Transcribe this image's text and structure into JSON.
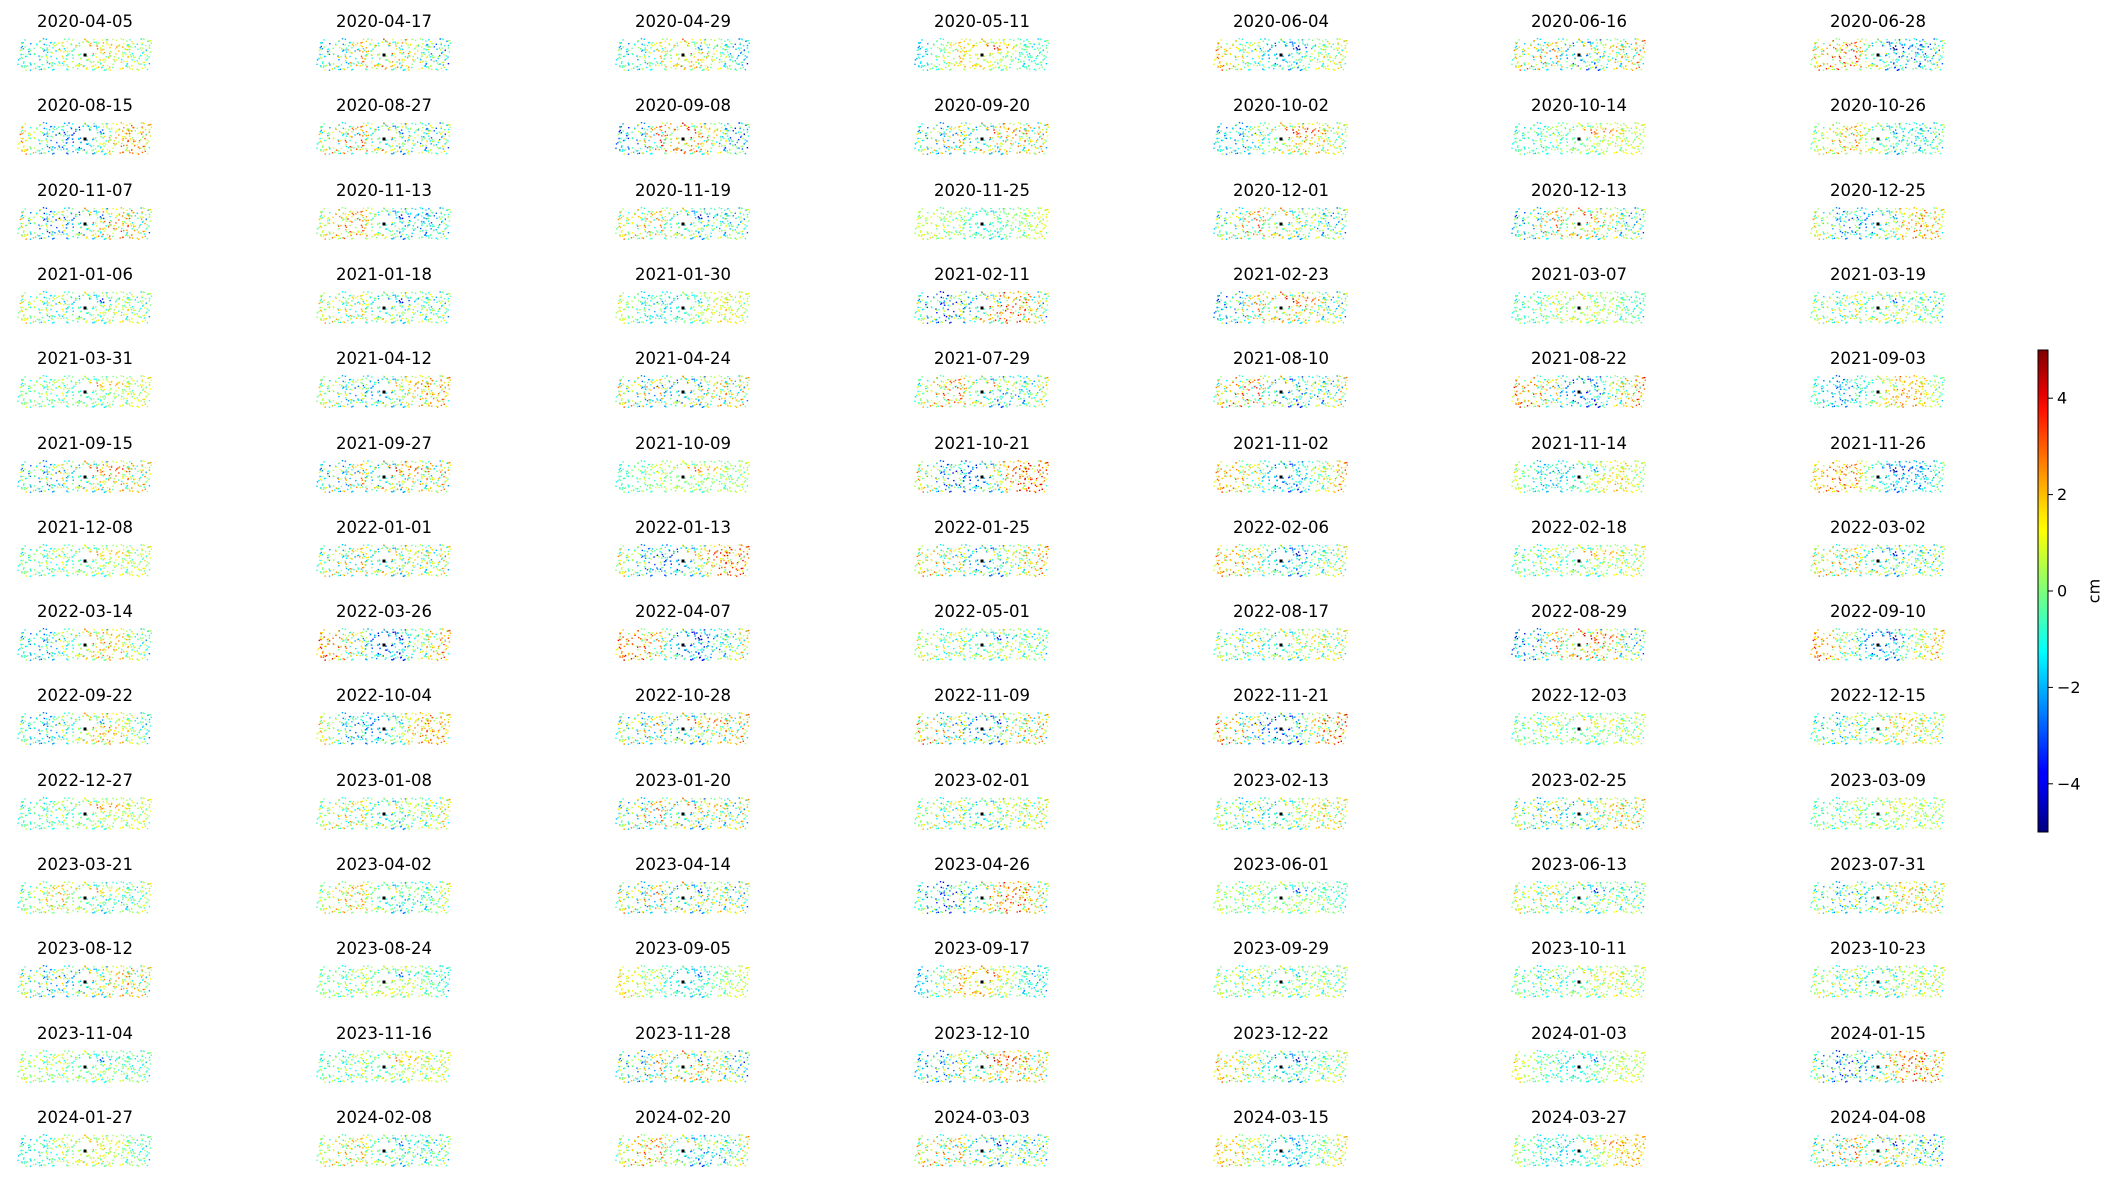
{
  "chart_data": {
    "type": "scatter",
    "layout": {
      "rows": 14,
      "cols": 7
    },
    "panels": [
      "2020-04-05",
      "2020-04-17",
      "2020-04-29",
      "2020-05-11",
      "2020-06-04",
      "2020-06-16",
      "2020-06-28",
      "2020-08-15",
      "2020-08-27",
      "2020-09-08",
      "2020-09-20",
      "2020-10-02",
      "2020-10-14",
      "2020-10-26",
      "2020-11-07",
      "2020-11-13",
      "2020-11-19",
      "2020-11-25",
      "2020-12-01",
      "2020-12-13",
      "2020-12-25",
      "2021-01-06",
      "2021-01-18",
      "2021-01-30",
      "2021-02-11",
      "2021-02-23",
      "2021-03-07",
      "2021-03-19",
      "2021-03-31",
      "2021-04-12",
      "2021-04-24",
      "2021-07-29",
      "2021-08-10",
      "2021-08-22",
      "2021-09-03",
      "2021-09-15",
      "2021-09-27",
      "2021-10-09",
      "2021-10-21",
      "2021-11-02",
      "2021-11-14",
      "2021-11-26",
      "2021-12-08",
      "2022-01-01",
      "2022-01-13",
      "2022-01-25",
      "2022-02-06",
      "2022-02-18",
      "2022-03-02",
      "2022-03-14",
      "2022-03-26",
      "2022-04-07",
      "2022-05-01",
      "2022-08-17",
      "2022-08-29",
      "2022-09-10",
      "2022-09-22",
      "2022-10-04",
      "2022-10-28",
      "2022-11-09",
      "2022-11-21",
      "2022-12-03",
      "2022-12-15",
      "2022-12-27",
      "2023-01-08",
      "2023-01-20",
      "2023-02-01",
      "2023-02-13",
      "2023-02-25",
      "2023-03-09",
      "2023-03-21",
      "2023-04-02",
      "2023-04-14",
      "2023-04-26",
      "2023-06-01",
      "2023-06-13",
      "2023-07-31",
      "2023-08-12",
      "2023-08-24",
      "2023-09-05",
      "2023-09-17",
      "2023-09-29",
      "2023-10-11",
      "2023-10-23",
      "2023-11-04",
      "2023-11-16",
      "2023-11-28",
      "2023-12-10",
      "2023-12-22",
      "2024-01-03",
      "2024-01-15",
      "2024-01-27",
      "2024-02-08",
      "2024-02-20",
      "2024-03-03",
      "2024-03-15",
      "2024-03-27",
      "2024-04-08"
    ],
    "colorbar": {
      "label": "cm",
      "colormap": "jet",
      "vmin": -5,
      "vmax": 5,
      "ticks": [
        4,
        2,
        0,
        -2,
        -4
      ],
      "tick_labels": [
        "4",
        "2",
        "0",
        "−2",
        "−4"
      ]
    },
    "axes_visible": false,
    "reference_point_color": "#000000"
  }
}
